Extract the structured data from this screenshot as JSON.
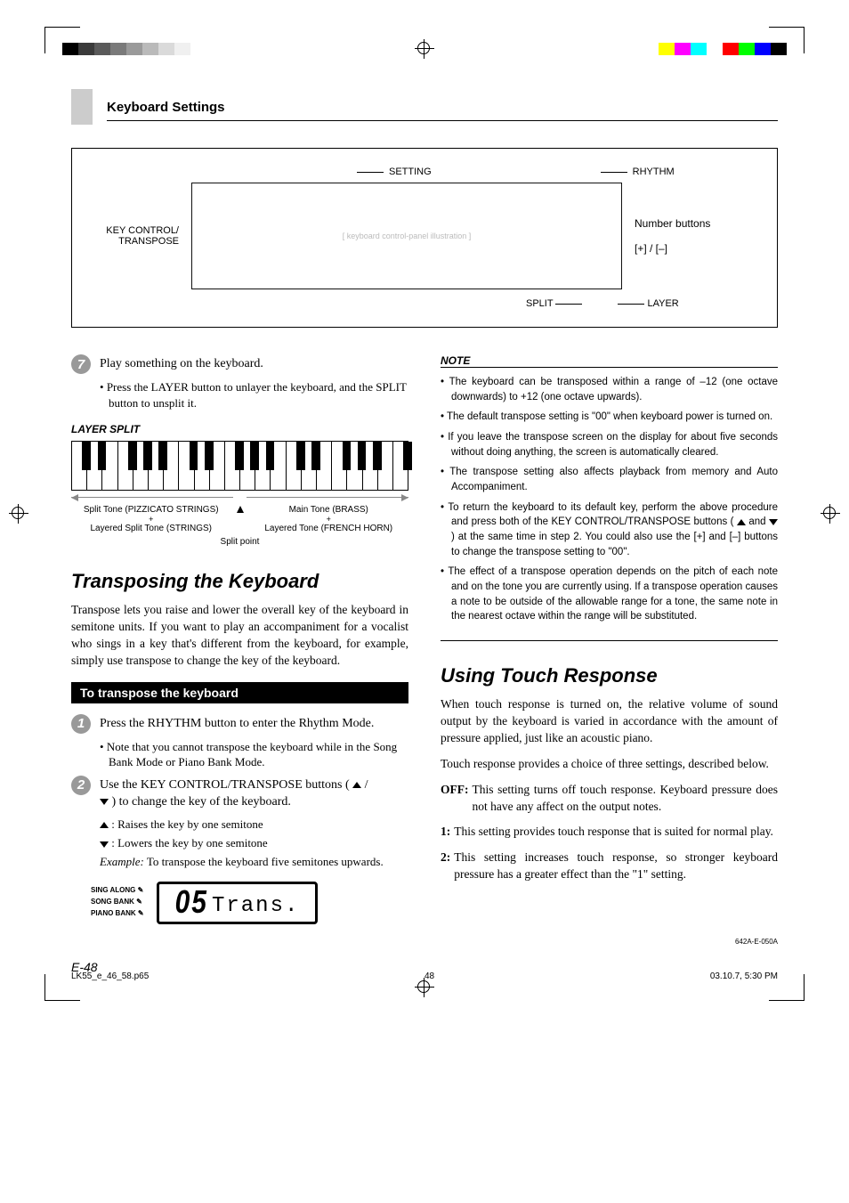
{
  "registration": {
    "gray_swatches": [
      "#000000",
      "#3a3a3a",
      "#5a5a5a",
      "#7a7a7a",
      "#9a9a9a",
      "#bababa",
      "#dadada",
      "#f0f0f0",
      "#ffffff"
    ],
    "cmyk_swatches": [
      "#ffffff",
      "#ffff00",
      "#ff00ff",
      "#00ffff",
      "#ffffff",
      "#ff0000",
      "#00ff00",
      "#0000ff",
      "#000000"
    ]
  },
  "header": {
    "title": "Keyboard Settings"
  },
  "figure": {
    "top": {
      "setting": "SETTING",
      "rhythm": "RHYTHM"
    },
    "left": "KEY CONTROL/\nTRANSPOSE",
    "right": {
      "numbuttons": "Number buttons",
      "plusminus": "[+] / [–]"
    },
    "bottom": {
      "split": "SPLIT",
      "layer": "LAYER"
    }
  },
  "left_col": {
    "step7": {
      "num": "7",
      "text": "Play something on the keyboard.",
      "bullet": "Press the LAYER button to unlayer the keyboard, and the SPLIT button to unsplit it."
    },
    "layer_split_label": "LAYER SPLIT",
    "piano": {
      "white_keys": 22,
      "black_pattern": [
        1,
        1,
        0,
        1,
        1,
        1,
        0
      ]
    },
    "split_diagram": {
      "left_main": "Split Tone (PIZZICATO STRINGS)",
      "left_plus": "+",
      "left_sub": "Layered Split Tone (STRINGS)",
      "right_main": "Main Tone (BRASS)",
      "right_plus": "+",
      "right_sub": "Layered Tone (FRENCH HORN)",
      "center": "Split point"
    },
    "transposing": {
      "heading": "Transposing the Keyboard",
      "para": "Transpose lets you raise and lower the overall key of the keyboard in semitone units. If you want to play an accompaniment for a vocalist who sings in a key that's different from the keyboard, for example, simply use transpose to change the key of the keyboard.",
      "bar": "To transpose the keyboard",
      "step1": {
        "num": "1",
        "text": "Press the RHYTHM button to enter the Rhythm Mode.",
        "bullet": "Note that you cannot transpose the keyboard while in the Song Bank Mode or Piano Bank Mode."
      },
      "step2": {
        "num": "2",
        "text_a": "Use the KEY CONTROL/TRANSPOSE buttons ( ",
        "text_b": " / ",
        "text_c": " ) to change the key of the keyboard.",
        "line_up": " : Raises the key by one semitone",
        "line_down": " : Lowers the key by one semitone",
        "example_label": "Example:",
        "example_text": " To transpose the keyboard five semitones upwards."
      },
      "lcd": {
        "labels": [
          "SING ALONG",
          "SONG BANK",
          "PIANO BANK"
        ],
        "value": "05",
        "text": "Trans."
      }
    }
  },
  "right_col": {
    "note_label": "NOTE",
    "notes": [
      "The keyboard can be transposed within a range of –12 (one octave downwards) to +12 (one octave upwards).",
      "The default transpose setting is \"00\" when keyboard power is turned on.",
      "If you leave the transpose screen on the display for about five seconds without doing anything, the screen is automatically cleared.",
      "The transpose setting also affects playback from memory and Auto Accompaniment.",
      "To return the keyboard to its default key, perform the above procedure and press both of the KEY CONTROL/TRANSPOSE buttons ( __UP__ and __DOWN__ ) at the same time in step 2. You could also use the [+] and [–] buttons to change the transpose setting to \"00\".",
      "The effect of a transpose operation depends on the pitch of each note and on the tone you are currently using. If a transpose operation causes a note to be outside of the allowable range for a tone, the same note in the nearest octave within the range will be substituted."
    ],
    "touch": {
      "heading": "Using Touch Response",
      "p1": "When touch response is turned on, the relative volume of sound output by the keyboard is varied in accordance with the amount of pressure applied, just like an acoustic piano.",
      "p2": "Touch response provides a choice of three settings, described below.",
      "defs": [
        {
          "k": "OFF:",
          "v": "This setting turns off touch response. Keyboard pressure does not have any affect on the output notes."
        },
        {
          "k": "1:",
          "v": "This setting provides touch response that is suited for normal play."
        },
        {
          "k": "2:",
          "v": "This setting increases touch response, so stronger keyboard pressure has a greater effect than the \"1\" setting."
        }
      ]
    }
  },
  "footer": {
    "page": "E-48",
    "doc_code": "642A-E-050A",
    "file": "LK55_e_46_58.p65",
    "sheet": "48",
    "timestamp": "03.10.7, 5:30 PM"
  }
}
